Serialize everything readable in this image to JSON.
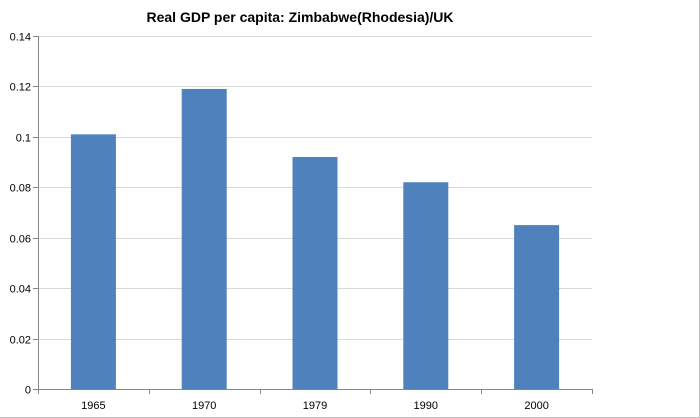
{
  "chart_data": {
    "type": "bar",
    "title": "Real GDP per capita: Zimbabwe(Rhodesia)/UK",
    "categories": [
      "1965",
      "1970",
      "1979",
      "1990",
      "2000"
    ],
    "values": [
      0.101,
      0.119,
      0.092,
      0.082,
      0.065
    ],
    "xlabel": "",
    "ylabel": "",
    "ylim": [
      0,
      0.14
    ],
    "yticks": [
      "0",
      "0.02",
      "0.04",
      "0.06",
      "0.08",
      "0.1",
      "0.12",
      "0.14"
    ],
    "ytick_values": [
      0,
      0.02,
      0.04,
      0.06,
      0.08,
      0.1,
      0.12,
      0.14
    ],
    "grid": true,
    "legend": "none",
    "bar_color": "#4f81bd",
    "grid_color": "#d9d9d9",
    "axis_color": "#868686"
  }
}
